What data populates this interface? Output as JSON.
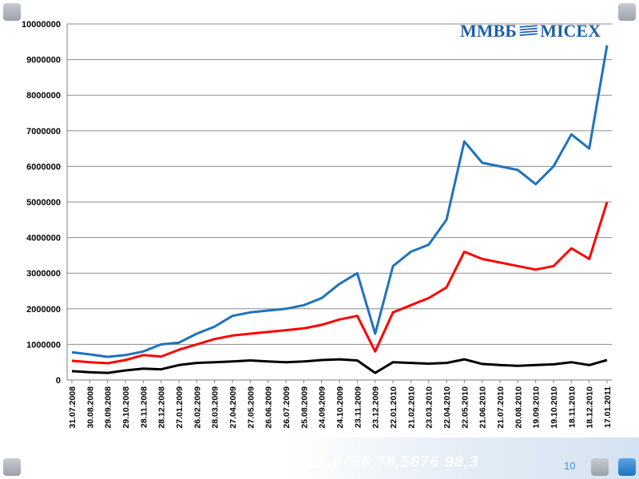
{
  "brand": {
    "logo_text_left": "ММВБ",
    "logo_text_right": "MICEX"
  },
  "slide": {
    "page_number": "10",
    "footer_numbers": "27,0786  78,5676  98,3"
  },
  "colors": {
    "blue": "#1f72bd",
    "red": "#ff0000",
    "black": "#000000",
    "grid": "#8c8c8c",
    "accent": "#1f5fa8"
  },
  "chart_data": {
    "type": "line",
    "title": "",
    "xlabel": "",
    "ylabel": "",
    "ylim": [
      0,
      10000000
    ],
    "grid": true,
    "legend": "none",
    "yticks": [
      "0",
      "1000000",
      "2000000",
      "3000000",
      "4000000",
      "5000000",
      "6000000",
      "7000000",
      "8000000",
      "9000000",
      "10000000"
    ],
    "xticks": [
      "31.07.2008",
      "30.08.2008",
      "29.09.2008",
      "29.10.2008",
      "28.11.2008",
      "28.12.2008",
      "27.01.2009",
      "26.02.2009",
      "28.03.2009",
      "27.04.2009",
      "27.05.2009",
      "26.06.2009",
      "26.07.2009",
      "25.08.2009",
      "24.09.2009",
      "24.10.2009",
      "23.11.2009",
      "23.12.2009",
      "22.01.2010",
      "21.02.2010",
      "23.03.2010",
      "22.04.2010",
      "22.05.2010",
      "21.06.2010",
      "21.07.2010",
      "20.08.2010",
      "19.09.2010",
      "19.10.2010",
      "18.11.2010",
      "18.12.2010",
      "17.01.2011"
    ],
    "series": [
      {
        "color": "#1f72bd",
        "values": [
          780000,
          720000,
          650000,
          700000,
          800000,
          1000000,
          1050000,
          1300000,
          1500000,
          1800000,
          1900000,
          1950000,
          2000000,
          2100000,
          2300000,
          2700000,
          3000000,
          1300000,
          3200000,
          3600000,
          3800000,
          4500000,
          6700000,
          6100000,
          6000000,
          5900000,
          5500000,
          6000000,
          6900000,
          6500000,
          9400000
        ]
      },
      {
        "color": "#ff0000",
        "values": [
          540000,
          500000,
          470000,
          560000,
          700000,
          660000,
          850000,
          1000000,
          1150000,
          1250000,
          1300000,
          1350000,
          1400000,
          1450000,
          1550000,
          1700000,
          1800000,
          800000,
          1900000,
          2100000,
          2300000,
          2600000,
          3600000,
          3400000,
          3300000,
          3200000,
          3100000,
          3200000,
          3700000,
          3400000,
          5000000
        ]
      },
      {
        "color": "#000000",
        "values": [
          250000,
          220000,
          200000,
          270000,
          320000,
          300000,
          420000,
          480000,
          500000,
          520000,
          550000,
          520000,
          500000,
          520000,
          560000,
          580000,
          550000,
          200000,
          500000,
          480000,
          460000,
          480000,
          580000,
          450000,
          420000,
          400000,
          420000,
          440000,
          500000,
          420000,
          560000
        ]
      }
    ]
  }
}
